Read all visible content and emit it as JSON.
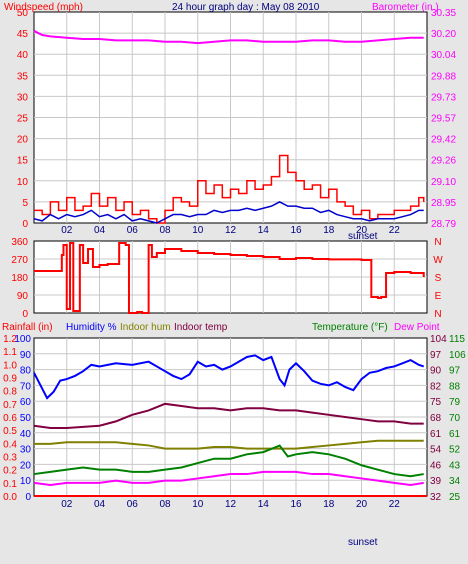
{
  "colors": {
    "wind": "#ff0000",
    "gust": "#ff0000",
    "windAvg": "#0000cc",
    "baro": "#ff00ff",
    "dir": "#ff0000",
    "rain": "#ff0000",
    "humidity": "#0000ff",
    "indoorHum": "#808000",
    "indoorTemp": "#800040",
    "temperature": "#008000",
    "dewPoint": "#ff00ff",
    "title": "#000080",
    "grid": "#c8c8c8",
    "plotBg": "#ffffff"
  },
  "chart_data": [
    {
      "type": "line",
      "id": "wind-baro",
      "title": "24 hour graph day : May 08 2010",
      "leftLabel": "Windspeed (mph)",
      "rightLabel": "Barometer (in.)",
      "sunsetLabel": "sunset",
      "xTicks": [
        "02",
        "04",
        "06",
        "08",
        "10",
        "12",
        "14",
        "16",
        "18",
        "20",
        "22"
      ],
      "xRange": [
        0,
        24
      ],
      "leftTicks": [
        "0",
        "5",
        "10",
        "15",
        "20",
        "25",
        "30",
        "35",
        "40",
        "45",
        "50"
      ],
      "rightTicks": [
        "28.79",
        "28.95",
        "29.10",
        "29.26",
        "29.42",
        "29.57",
        "29.73",
        "29.88",
        "30.04",
        "30.20",
        "30.35"
      ],
      "leftRange": [
        0,
        50
      ],
      "rightRange": [
        28.79,
        30.35
      ],
      "series": [
        {
          "key": "barometer",
          "axis": "right",
          "x": [
            0,
            0.5,
            1,
            2,
            3,
            4,
            5,
            6,
            7,
            8,
            9,
            10,
            11,
            12,
            13,
            14,
            15,
            16,
            17,
            18,
            19,
            20,
            21,
            22,
            23,
            23.8
          ],
          "y": [
            30.21,
            30.18,
            30.17,
            30.16,
            30.15,
            30.15,
            30.14,
            30.14,
            30.14,
            30.13,
            30.13,
            30.12,
            30.13,
            30.14,
            30.14,
            30.13,
            30.13,
            30.13,
            30.14,
            30.14,
            30.13,
            30.13,
            30.14,
            30.15,
            30.16,
            30.16
          ]
        },
        {
          "key": "gust",
          "axis": "left",
          "x": [
            0,
            0.5,
            1,
            1.5,
            2,
            2.5,
            3,
            3.5,
            4,
            4.5,
            5,
            5.5,
            6,
            6.5,
            7,
            7.5,
            8,
            8.5,
            9,
            9.5,
            10,
            10.5,
            11,
            11.5,
            12,
            12.5,
            13,
            13.5,
            14,
            14.5,
            15,
            15.5,
            16,
            16.5,
            17,
            17.5,
            18,
            18.5,
            19,
            19.5,
            20,
            20.5,
            21,
            21.5,
            22,
            22.5,
            23,
            23.5,
            23.8
          ],
          "y": [
            3,
            2,
            5,
            3,
            6,
            3,
            4,
            7,
            4,
            6,
            3,
            5,
            2,
            3,
            1,
            0,
            3,
            6,
            5,
            4,
            10,
            7,
            9,
            6,
            8,
            7,
            10,
            8,
            9,
            11,
            16,
            12,
            10,
            8,
            9,
            6,
            8,
            5,
            4,
            2,
            3,
            1,
            2,
            2,
            3,
            3,
            4,
            6,
            5
          ]
        },
        {
          "key": "windAvg",
          "axis": "left",
          "x": [
            0,
            0.5,
            1,
            1.5,
            2,
            2.5,
            3,
            3.5,
            4,
            4.5,
            5,
            5.5,
            6,
            6.5,
            7,
            7.5,
            8,
            8.5,
            9,
            9.5,
            10,
            10.5,
            11,
            11.5,
            12,
            12.5,
            13,
            13.5,
            14,
            14.5,
            15,
            15.5,
            16,
            16.5,
            17,
            17.5,
            18,
            18.5,
            19,
            19.5,
            20,
            20.5,
            21,
            21.5,
            22,
            22.5,
            23,
            23.5,
            23.8
          ],
          "y": [
            1,
            0.5,
            2,
            1,
            2,
            1.5,
            2,
            3,
            1.5,
            2,
            1,
            2,
            0.5,
            1,
            0.5,
            0,
            1,
            2,
            2,
            1.5,
            2,
            2,
            3,
            2.5,
            3,
            3,
            3.5,
            3,
            3.5,
            4,
            5,
            4,
            4,
            3.5,
            3.5,
            2.5,
            3,
            2,
            1.5,
            1,
            1,
            0.5,
            1,
            1,
            1,
            1.5,
            2,
            3,
            3
          ]
        }
      ]
    },
    {
      "type": "line",
      "id": "wind-direction",
      "leftTicks": [
        "0",
        "90",
        "180",
        "270",
        "360"
      ],
      "rightTicks": [
        "N",
        "E",
        "S",
        "W",
        "N"
      ],
      "range": [
        0,
        360
      ],
      "series": [
        {
          "key": "direction",
          "x": [
            0,
            1.6,
            1.7,
            1.8,
            2.0,
            2.2,
            2.4,
            2.8,
            3.0,
            3.3,
            3.6,
            4.0,
            4.5,
            5.2,
            5.6,
            5.8,
            6.0,
            6.3,
            6.6,
            7.0,
            7.2,
            7.5,
            8,
            9,
            10,
            11,
            12,
            13,
            14,
            15,
            16,
            17,
            18,
            19,
            20,
            20.5,
            20.6,
            21,
            21.2,
            21.5,
            22,
            23,
            23.8
          ],
          "y": [
            210,
            210,
            290,
            340,
            20,
            350,
            10,
            340,
            250,
            320,
            230,
            240,
            245,
            350,
            340,
            0,
            0,
            5,
            0,
            340,
            280,
            300,
            320,
            310,
            300,
            295,
            290,
            285,
            280,
            270,
            275,
            270,
            268,
            268,
            265,
            265,
            80,
            75,
            80,
            200,
            205,
            200,
            180
          ]
        }
      ]
    },
    {
      "type": "line",
      "id": "rain-hum-temp",
      "labels": [
        "Rainfall (in)",
        "Humidity %",
        "Indoor hum",
        "Indoor temp",
        "Temperature (°F)",
        "Dew Point"
      ],
      "sunsetLabel": "sunset",
      "xTicks": [
        "02",
        "04",
        "06",
        "08",
        "10",
        "12",
        "14",
        "16",
        "18",
        "20",
        "22"
      ],
      "rainTicks": [
        "0.0",
        "0.1",
        "0.2",
        "0.3",
        "0.4",
        "0.5",
        "0.6",
        "0.7",
        "0.8",
        "0.9",
        "1.0",
        "1.1",
        "1.2"
      ],
      "humTicks": [
        "0",
        "10",
        "20",
        "30",
        "40",
        "50",
        "60",
        "70",
        "80",
        "90",
        "100"
      ],
      "tempTicksInner": [
        "32",
        "39",
        "46",
        "54",
        "61",
        "68",
        "75",
        "82",
        "90",
        "97",
        "104"
      ],
      "tempTicksOuter": [
        "25",
        "34",
        "43",
        "52",
        "61",
        "70",
        "79",
        "88",
        "97",
        "106",
        "115"
      ],
      "humRange": [
        0,
        100
      ],
      "tempInnerRange": [
        32,
        104
      ],
      "rainRange": [
        0,
        1.2
      ],
      "series": [
        {
          "key": "humidity",
          "axis": "hum",
          "x": [
            0,
            0.4,
            0.8,
            1.2,
            1.6,
            2.0,
            2.5,
            3,
            3.5,
            4,
            5,
            6,
            7,
            7.5,
            8,
            8.5,
            9,
            9.5,
            10,
            10.5,
            11,
            11.5,
            12,
            12.5,
            13,
            13.5,
            14,
            14.5,
            15,
            15.3,
            15.6,
            16,
            16.5,
            17,
            17.5,
            18,
            18.5,
            19,
            19.5,
            20,
            20.5,
            21,
            21.5,
            22,
            22.5,
            23,
            23.5,
            23.8
          ],
          "y": [
            78,
            70,
            62,
            66,
            73,
            74,
            76,
            79,
            83,
            82,
            84,
            83,
            85,
            82,
            79,
            76,
            74,
            77,
            85,
            82,
            83,
            80,
            82,
            85,
            88,
            89,
            86,
            88,
            74,
            70,
            80,
            84,
            79,
            73,
            71,
            70,
            72,
            69,
            67,
            74,
            78,
            79,
            81,
            82,
            84,
            86,
            83,
            82
          ]
        },
        {
          "key": "indoorTemp",
          "axis": "tempInner",
          "x": [
            0,
            1,
            2,
            3,
            4,
            5,
            6,
            7,
            8,
            9,
            10,
            11,
            12,
            13,
            14,
            15,
            16,
            17,
            18,
            19,
            20,
            21,
            22,
            23,
            23.8
          ],
          "y": [
            64,
            63,
            63,
            63.5,
            64,
            66,
            69,
            71,
            74,
            73,
            72,
            72,
            71,
            72,
            72,
            71,
            71,
            70,
            69,
            68,
            67,
            66,
            66,
            65,
            65
          ]
        },
        {
          "key": "indoorHum",
          "axis": "hum",
          "x": [
            0,
            1,
            2,
            3,
            4,
            5,
            6,
            7,
            8,
            9,
            10,
            11,
            12,
            13,
            14,
            15,
            16,
            17,
            18,
            19,
            20,
            21,
            22,
            23,
            23.8
          ],
          "y": [
            33,
            33,
            34,
            34,
            34,
            34,
            33,
            32,
            30,
            30,
            30,
            31,
            31,
            30,
            30,
            30,
            30,
            31,
            32,
            33,
            34,
            35,
            35,
            35,
            35
          ]
        },
        {
          "key": "temperature",
          "axis": "tempInner",
          "x": [
            0,
            1,
            2,
            3,
            4,
            5,
            6,
            7,
            8,
            9,
            10,
            11,
            12,
            13,
            14,
            15,
            15.5,
            16,
            17,
            18,
            19,
            20,
            21,
            22,
            23,
            23.8
          ],
          "y": [
            42,
            43,
            44,
            45,
            44,
            44,
            43,
            43,
            44,
            45,
            47,
            49,
            49,
            51,
            52,
            55,
            50,
            51,
            52,
            51,
            49,
            46,
            44,
            42,
            41,
            42
          ]
        },
        {
          "key": "dewPoint",
          "axis": "tempInner",
          "x": [
            0,
            1,
            2,
            3,
            4,
            5,
            6,
            7,
            8,
            9,
            10,
            11,
            12,
            13,
            14,
            15,
            16,
            17,
            18,
            19,
            20,
            21,
            22,
            23,
            23.8
          ],
          "y": [
            38,
            37,
            38,
            38,
            38,
            39,
            38,
            38,
            39,
            39,
            40,
            41,
            42,
            42,
            43,
            43,
            43,
            42,
            42,
            41,
            40,
            39,
            38,
            37,
            38
          ]
        },
        {
          "key": "rain",
          "axis": "rain",
          "x": [
            0,
            24
          ],
          "y": [
            0,
            0
          ]
        }
      ]
    }
  ]
}
